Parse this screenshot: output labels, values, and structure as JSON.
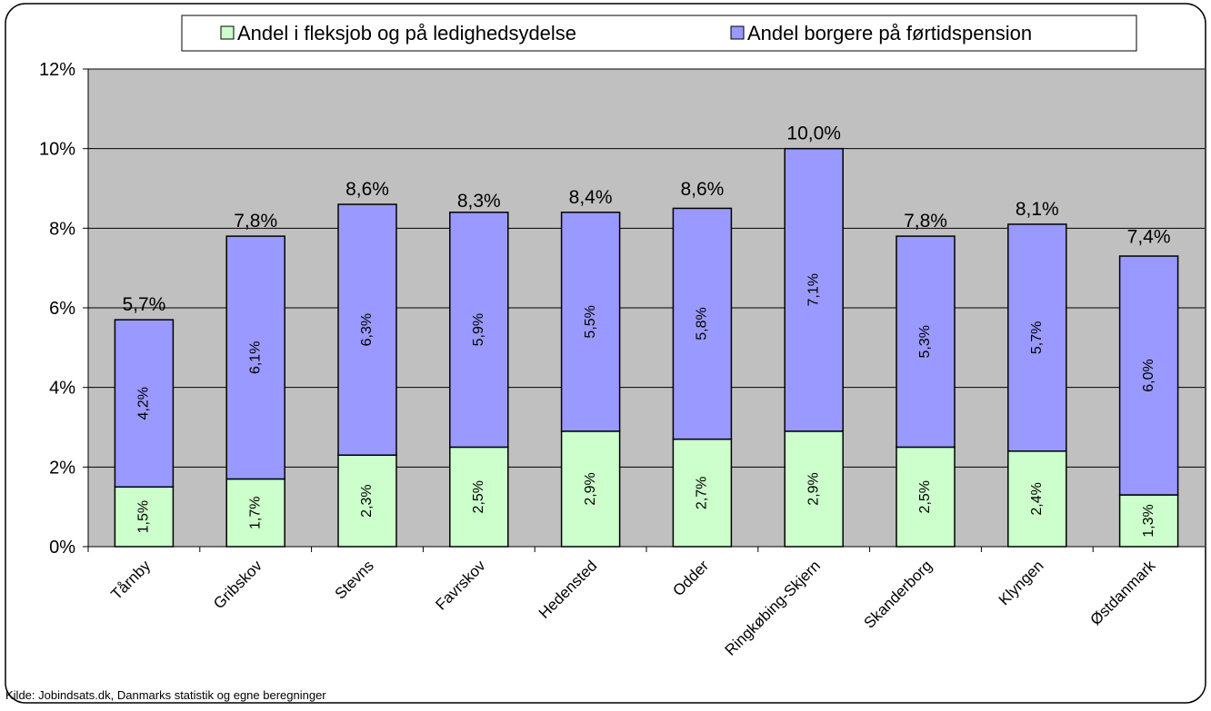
{
  "chart_data": {
    "type": "stacked_bar",
    "categories": [
      "Tårnby",
      "Gribskov",
      "Stevns",
      "Favrskov",
      "Hedensted",
      "Odder",
      "Ringkøbing-Skjern",
      "Skanderborg",
      "Klyngen",
      "Østdanmark"
    ],
    "series": [
      {
        "name": "Andel i fleksjob og på ledighedsydelse",
        "color": "#ccffcc",
        "values": [
          1.5,
          1.7,
          2.3,
          2.5,
          2.9,
          2.7,
          2.9,
          2.5,
          2.4,
          1.3
        ],
        "value_labels": [
          "1,5%",
          "1,7%",
          "2,3%",
          "2,5%",
          "2,9%",
          "2,7%",
          "2,9%",
          "2,5%",
          "2,4%",
          "1,3%"
        ]
      },
      {
        "name": "Andel borgere på førtidspension",
        "color": "#9999ff",
        "values": [
          4.2,
          6.1,
          6.3,
          5.9,
          5.5,
          5.8,
          7.1,
          5.3,
          5.7,
          6.0
        ],
        "value_labels": [
          "4,2%",
          "6,1%",
          "6,3%",
          "5,9%",
          "5,5%",
          "5,8%",
          "7,1%",
          "5,3%",
          "5,7%",
          "6,0%"
        ]
      }
    ],
    "totals": [
      5.7,
      7.8,
      8.6,
      8.3,
      8.4,
      8.6,
      10.0,
      7.8,
      8.1,
      7.4
    ],
    "total_labels": [
      "5,7%",
      "7,8%",
      "8,6%",
      "8,3%",
      "8,4%",
      "8,6%",
      "10,0%",
      "7,8%",
      "8,1%",
      "7,4%"
    ],
    "ylim": [
      0,
      12
    ],
    "yticks": [
      {
        "value": 0,
        "label": "0%"
      },
      {
        "value": 2,
        "label": "2%"
      },
      {
        "value": 4,
        "label": "4%"
      },
      {
        "value": 6,
        "label": "6%"
      },
      {
        "value": 8,
        "label": "8%"
      },
      {
        "value": 10,
        "label": "10%"
      },
      {
        "value": 12,
        "label": "12%"
      }
    ],
    "grid": true,
    "legend": "top",
    "source": "Kilde: Jobindsats.dk, Danmarks statistik og egne beregninger"
  }
}
